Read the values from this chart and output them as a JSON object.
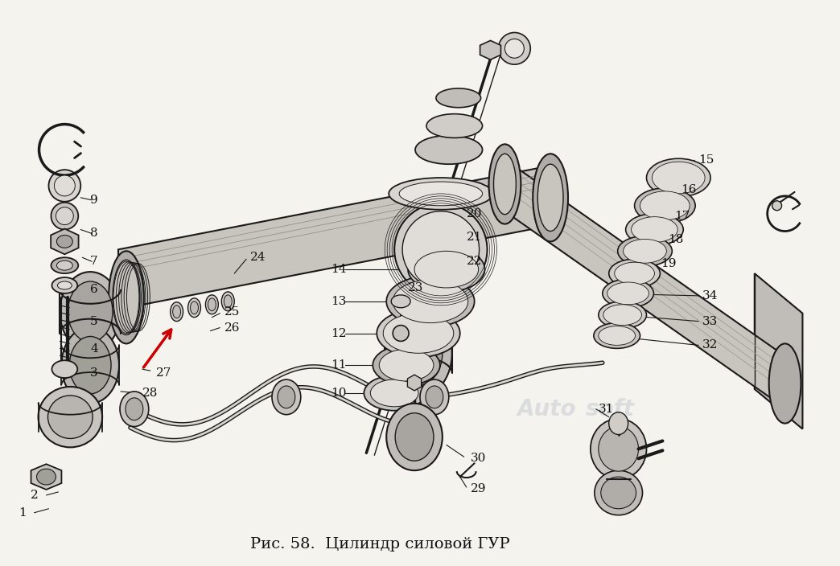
{
  "title": "Рис. 58.  Цилиндр силовой ГУР",
  "background_color": "#f5f3ee",
  "watermark_text": "Auto",
  "watermark_text2": "soft",
  "fig_width": 10.44,
  "fig_height": 7.04,
  "arrow_color": "#cc0000",
  "label_fontsize": 11,
  "label_color": "#111111",
  "line_color": "#1a1a1a"
}
